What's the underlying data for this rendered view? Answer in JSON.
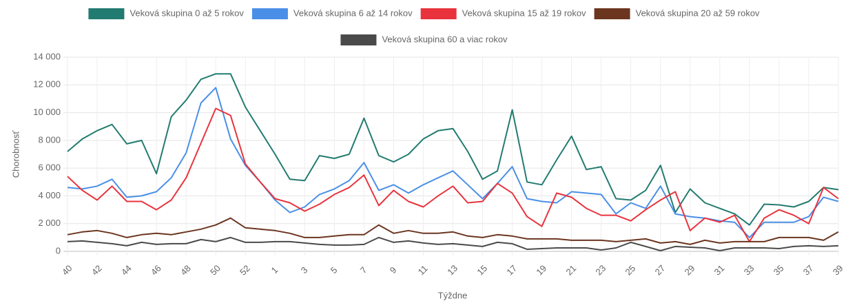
{
  "chart_data": {
    "type": "line",
    "x_label": "Týždne",
    "y_label": "Chorobnosť",
    "categories": [
      "40",
      null,
      "42",
      null,
      "44",
      null,
      "46",
      null,
      "48",
      null,
      "50",
      null,
      "52",
      null,
      "1",
      null,
      "3",
      null,
      "5",
      null,
      "7",
      null,
      "9",
      null,
      "11",
      null,
      "13",
      null,
      "15",
      null,
      "17",
      null,
      "19",
      null,
      "21",
      null,
      "23",
      null,
      "25",
      null,
      "27",
      null,
      "29",
      null,
      "31",
      null,
      "33",
      null,
      "35",
      null,
      "37",
      null,
      "39"
    ],
    "series": [
      {
        "name": "Veková skupina 0 až 5 rokov",
        "color": "#227b70",
        "values": [
          7200,
          8100,
          8700,
          9150,
          7750,
          8000,
          5600,
          9700,
          10900,
          12400,
          12800,
          12800,
          10400,
          8700,
          7000,
          5200,
          5100,
          6900,
          6700,
          7000,
          9600,
          6900,
          6450,
          7000,
          8100,
          8700,
          8850,
          7200,
          5200,
          5800,
          10200,
          5000,
          4800,
          6600,
          8300,
          5900,
          6100,
          3800,
          3700,
          4400,
          6200,
          2800,
          4500,
          3500,
          3100,
          2700,
          1900,
          3400,
          3350,
          3200,
          3600,
          4600,
          4450
        ]
      },
      {
        "name": "Veková skupina 6 až 14 rokov",
        "color": "#4a8fe7",
        "values": [
          4600,
          4500,
          4700,
          5200,
          3900,
          4000,
          4300,
          5300,
          7100,
          10700,
          11800,
          8100,
          6200,
          5000,
          3700,
          2800,
          3200,
          4100,
          4500,
          5100,
          6400,
          4400,
          4800,
          4200,
          4800,
          5300,
          5800,
          4800,
          3800,
          4900,
          6100,
          3800,
          3600,
          3500,
          4300,
          4200,
          4100,
          2700,
          3500,
          3100,
          4700,
          2700,
          2500,
          2400,
          2200,
          2100,
          1000,
          2100,
          2100,
          2100,
          2500,
          3900,
          3600
        ]
      },
      {
        "name": "Veková skupina 15 až 19 rokov",
        "color": "#e8333d",
        "values": [
          5400,
          4400,
          3700,
          4700,
          3600,
          3600,
          3000,
          3700,
          5300,
          7800,
          10300,
          9800,
          6300,
          5000,
          3800,
          3500,
          2900,
          3400,
          4100,
          4600,
          5500,
          3300,
          4400,
          3600,
          3200,
          4000,
          4700,
          3500,
          3600,
          4900,
          4200,
          2500,
          1800,
          4200,
          3900,
          3100,
          2600,
          2600,
          2200,
          3000,
          3700,
          4300,
          1500,
          2400,
          2100,
          2600,
          700,
          2400,
          3000,
          2600,
          2000,
          4600,
          3800
        ]
      },
      {
        "name": "Veková skupina 20 až 59 rokov",
        "color": "#6b3520",
        "values": [
          1200,
          1400,
          1500,
          1300,
          1000,
          1200,
          1300,
          1200,
          1400,
          1600,
          1900,
          2400,
          1700,
          1600,
          1500,
          1300,
          1000,
          1000,
          1100,
          1200,
          1200,
          1900,
          1300,
          1500,
          1300,
          1300,
          1400,
          1100,
          1000,
          1200,
          1100,
          900,
          900,
          900,
          800,
          800,
          800,
          700,
          800,
          900,
          600,
          700,
          500,
          800,
          600,
          700,
          700,
          700,
          1000,
          1000,
          1000,
          800,
          1400
        ]
      },
      {
        "name": "Veková skupina 60 a viac rokov",
        "color": "#4a4a4a",
        "values": [
          700,
          750,
          650,
          550,
          400,
          650,
          500,
          550,
          550,
          850,
          700,
          1000,
          650,
          650,
          700,
          700,
          600,
          500,
          450,
          450,
          500,
          1000,
          650,
          750,
          600,
          500,
          550,
          450,
          350,
          650,
          550,
          150,
          200,
          250,
          250,
          250,
          100,
          250,
          650,
          350,
          50,
          350,
          300,
          250,
          50,
          250,
          250,
          250,
          200,
          350,
          400,
          350,
          400
        ]
      }
    ],
    "ylim": [
      0,
      14000
    ],
    "yticks": [
      0,
      {
        "value": 2000,
        "label": "2 000"
      },
      {
        "value": 4000,
        "label": "4 000"
      },
      {
        "value": 6000,
        "label": "6 000"
      },
      {
        "value": 8000,
        "label": "8 000"
      },
      {
        "value": 10000,
        "label": "10 000"
      },
      {
        "value": 12000,
        "label": "12 000"
      },
      {
        "value": 14000,
        "label": "14 000"
      }
    ],
    "grid": true
  }
}
